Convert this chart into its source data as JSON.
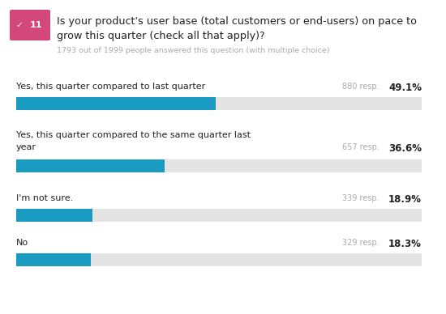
{
  "question_number": "11",
  "question_text_line1": "Is your product's user base (total customers or end-users) on pace to",
  "question_text_line2": "grow this quarter (check all that apply)?",
  "subtitle": "1793 out of 1999 people answered this question (with multiple choice)",
  "responses": [
    {
      "label_line1": "Yes, this quarter compared to last quarter",
      "label_line2": "",
      "count": 880,
      "pct": 49.1
    },
    {
      "label_line1": "Yes, this quarter compared to the same quarter last",
      "label_line2": "year",
      "count": 657,
      "pct": 36.6
    },
    {
      "label_line1": "I'm not sure.",
      "label_line2": "",
      "count": 339,
      "pct": 18.9
    },
    {
      "label_line1": "No",
      "label_line2": "",
      "count": 329,
      "pct": 18.3
    }
  ],
  "bar_color": "#1a9bc2",
  "bar_bg_color": "#e4e4e4",
  "badge_color": "#d4477a",
  "badge_text_color": "#ffffff",
  "question_text_color": "#222222",
  "subtitle_color": "#aaaaaa",
  "label_color": "#222222",
  "resp_color": "#aaaaaa",
  "pct_color": "#222222",
  "background_color": "#ffffff"
}
